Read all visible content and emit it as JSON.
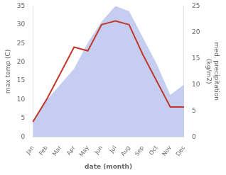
{
  "chart_data": {
    "type": "line",
    "xlabel": "date (month)",
    "ylabel": "max temp (C)",
    "y2label": "med. precipitation\n(kg/m2)",
    "categories": [
      "Jan",
      "Feb",
      "Mar",
      "Apr",
      "May",
      "Jun",
      "Jul",
      "Aug",
      "Sep",
      "Oct",
      "Nov",
      "Dec"
    ],
    "series": [
      {
        "type": "area",
        "color": "#c5cef0",
        "axis": "y2",
        "values": [
          3,
          7,
          10,
          13,
          18,
          22,
          25,
          24,
          19,
          14,
          8,
          10
        ]
      },
      {
        "type": "line",
        "color": "#c0392b",
        "values": [
          4,
          10,
          17,
          24,
          23,
          30,
          31,
          30,
          22,
          15,
          8,
          8
        ]
      }
    ],
    "ylim": [
      0,
      35
    ],
    "yticks": [
      0,
      5,
      10,
      15,
      20,
      25,
      30,
      35
    ],
    "y2lim": [
      0,
      25
    ],
    "y2ticks": [
      0,
      5,
      10,
      15,
      20,
      25
    ],
    "grid": false
  }
}
